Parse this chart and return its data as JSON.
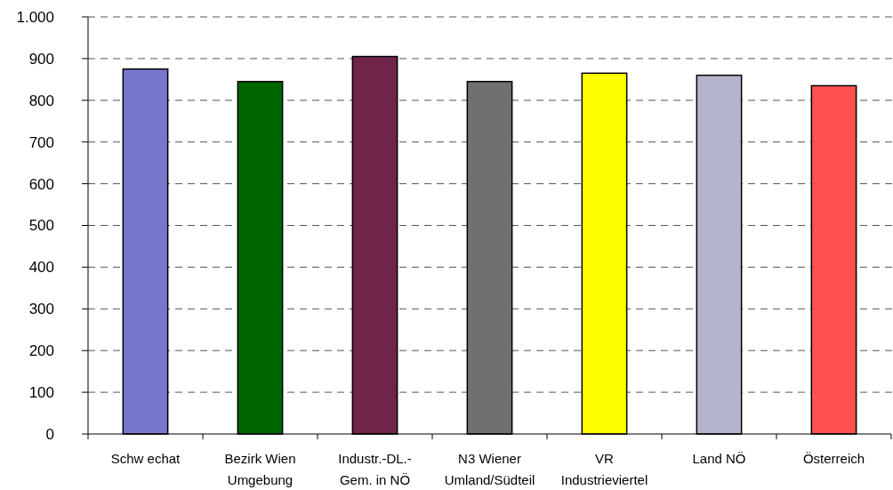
{
  "chart_data": {
    "type": "bar",
    "categories": [
      "Schw echat",
      "Bezirk Wien\nUmgebung",
      "Industr.-DL.-\nGem. in NÖ",
      "N3 Wiener\nUmland/Südteil",
      "VR\nIndustrieviertel",
      "Land NÖ",
      "Österreich"
    ],
    "values": [
      875,
      845,
      905,
      845,
      865,
      860,
      835
    ],
    "colors": [
      "#7777cc",
      "#006600",
      "#6e2549",
      "#707070",
      "#ffff00",
      "#b4b4cc",
      "#ff5050"
    ],
    "ylim": [
      0,
      1000
    ],
    "yticks": [
      0,
      100,
      200,
      300,
      400,
      500,
      600,
      700,
      800,
      900,
      {
        "value": 1000,
        "label": "1.000"
      }
    ],
    "grid": "y"
  }
}
